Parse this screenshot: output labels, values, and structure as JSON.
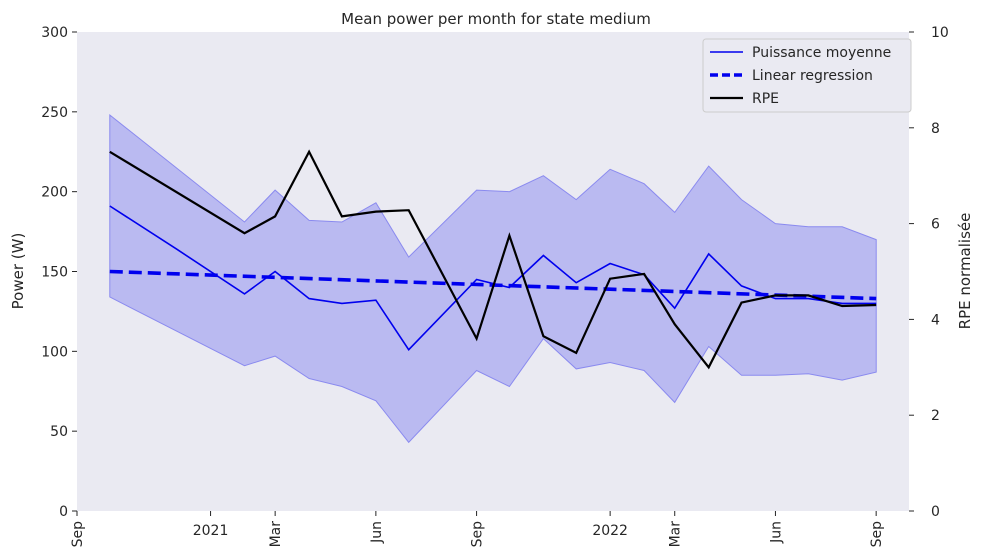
{
  "chart_data": {
    "type": "line",
    "title": "Mean power per month for state medium",
    "ylabel": "Power (W)",
    "y2label": "RPE normalisée",
    "ylim": [
      0,
      300
    ],
    "y2lim": [
      0,
      10
    ],
    "yticks": [
      0,
      50,
      100,
      150,
      200,
      250,
      300
    ],
    "y2ticks": [
      0,
      2,
      4,
      6,
      8,
      10
    ],
    "xlim": [
      "2020-09-01",
      "2022-10-01"
    ],
    "xticks": [
      {
        "date": "2020-09-01",
        "label": "Sep",
        "rotated": true
      },
      {
        "date": "2021-01-01",
        "label": "2021",
        "rotated": false
      },
      {
        "date": "2021-03-01",
        "label": "Mar",
        "rotated": true
      },
      {
        "date": "2021-06-01",
        "label": "Jun",
        "rotated": true
      },
      {
        "date": "2021-09-01",
        "label": "Sep",
        "rotated": true
      },
      {
        "date": "2022-01-01",
        "label": "2022",
        "rotated": false
      },
      {
        "date": "2022-03-01",
        "label": "Mar",
        "rotated": true
      },
      {
        "date": "2022-06-01",
        "label": "Jun",
        "rotated": true
      },
      {
        "date": "2022-09-01",
        "label": "Sep",
        "rotated": true
      }
    ],
    "grid": false,
    "legend_position": "top-right",
    "colors": {
      "background": "#eaeaf2",
      "power": "#0000ee",
      "band": "#8a8aef",
      "rpe": "#000000"
    },
    "series": [
      {
        "name": "Puissance moyenne",
        "axis": "left",
        "style": "solid",
        "x": [
          "2020-10-01",
          "2020-12-01",
          "2021-02-01",
          "2021-03-01",
          "2021-04-01",
          "2021-05-01",
          "2021-06-01",
          "2021-07-01",
          "2021-09-01",
          "2021-10-01",
          "2021-11-01",
          "2021-12-01",
          "2022-01-01",
          "2022-02-01",
          "2022-03-01",
          "2022-04-01",
          "2022-05-01",
          "2022-06-01",
          "2022-07-01",
          "2022-08-01",
          "2022-09-01"
        ],
        "values": [
          191,
          164,
          136,
          150,
          133,
          130,
          132,
          101,
          145,
          140,
          160,
          143,
          155,
          148,
          127,
          161,
          141,
          133,
          133,
          130,
          130
        ]
      },
      {
        "name": "Linear regression",
        "axis": "left",
        "style": "dashed",
        "x": [
          "2020-10-01",
          "2022-09-01"
        ],
        "values": [
          150,
          133
        ]
      },
      {
        "name": "RPE",
        "axis": "right",
        "style": "solid",
        "x": [
          "2020-10-01",
          "2021-02-01",
          "2021-03-01",
          "2021-04-01",
          "2021-05-01",
          "2021-06-01",
          "2021-07-01",
          "2021-09-01",
          "2021-10-01",
          "2021-11-01",
          "2021-12-01",
          "2022-01-01",
          "2022-02-01",
          "2022-03-01",
          "2022-04-01",
          "2022-05-01",
          "2022-06-01",
          "2022-07-01",
          "2022-08-01",
          "2022-09-01"
        ],
        "values": [
          7.5,
          5.8,
          6.15,
          7.5,
          6.15,
          6.25,
          6.28,
          3.6,
          5.75,
          3.65,
          3.3,
          4.85,
          4.95,
          3.9,
          3.0,
          4.35,
          4.5,
          4.5,
          4.28,
          4.3
        ]
      }
    ],
    "band": {
      "axis": "left",
      "x": [
        "2020-10-01",
        "2021-02-01",
        "2021-03-01",
        "2021-04-01",
        "2021-05-01",
        "2021-06-01",
        "2021-07-01",
        "2021-09-01",
        "2021-10-01",
        "2021-11-01",
        "2021-12-01",
        "2022-01-01",
        "2022-02-01",
        "2022-03-01",
        "2022-04-01",
        "2022-05-01",
        "2022-06-01",
        "2022-07-01",
        "2022-08-01",
        "2022-09-01"
      ],
      "upper": [
        248,
        181,
        201,
        182,
        181,
        193,
        159,
        201,
        200,
        210,
        195,
        214,
        205,
        187,
        216,
        195,
        180,
        178,
        178,
        170
      ],
      "lower": [
        134,
        91,
        97,
        83,
        78,
        69,
        43,
        88,
        78,
        108,
        89,
        93,
        88,
        68,
        103,
        85,
        85,
        86,
        82,
        87
      ]
    }
  }
}
